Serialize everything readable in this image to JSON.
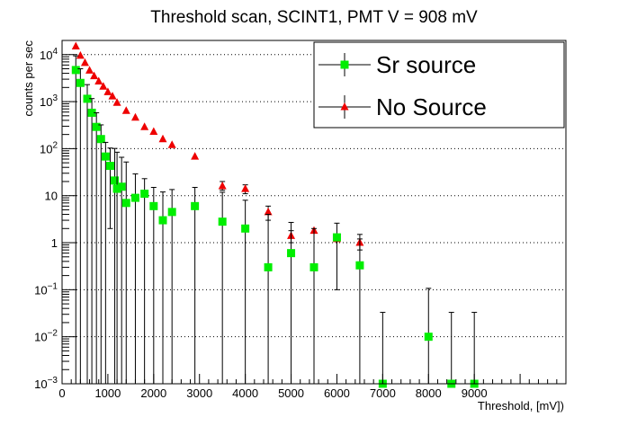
{
  "chart_data": {
    "type": "scatter",
    "title": "Threshold scan, SCINT1, PMT V = 908 mV",
    "xlabel": "Threshold, [mV])",
    "ylabel": "counts per sec",
    "xlim": [
      0,
      11000
    ],
    "ylim": [
      0.001,
      20000
    ],
    "yscale": "log",
    "grid": {
      "x": false,
      "y": true
    },
    "legend_position": "top-right",
    "x_tick_labels": [
      {
        "value": 0,
        "text": "0"
      },
      {
        "value": 1000,
        "text": "1000"
      },
      {
        "value": 2000,
        "text": "2000"
      },
      {
        "value": 3000,
        "text": "3000"
      },
      {
        "value": 4000,
        "text": "4000"
      },
      {
        "value": 5000,
        "text": "5000"
      },
      {
        "value": 6000,
        "text": "6000"
      },
      {
        "value": 7000,
        "text": "7000"
      },
      {
        "value": 8000,
        "text": "8000"
      },
      {
        "value": 9000,
        "text": "9000"
      }
    ],
    "y_tick_labels": [
      {
        "value": 0.001,
        "base": "10",
        "exp": "−3"
      },
      {
        "value": 0.01,
        "base": "10",
        "exp": "−2"
      },
      {
        "value": 0.1,
        "base": "10",
        "exp": "−1"
      },
      {
        "value": 1,
        "base": "1",
        "exp": ""
      },
      {
        "value": 10,
        "base": "10",
        "exp": ""
      },
      {
        "value": 100,
        "base": "10",
        "exp": "2"
      },
      {
        "value": 1000,
        "base": "10",
        "exp": "3"
      },
      {
        "value": 10000,
        "base": "10",
        "exp": "4"
      }
    ],
    "series": [
      {
        "name": "Sr source",
        "marker": "square",
        "color": "#00ee00",
        "points": [
          {
            "x": 300,
            "y": 4700,
            "yerr_low": 4700,
            "yerr_high": 4700
          },
          {
            "x": 400,
            "y": 2500,
            "yerr_low": 2500,
            "yerr_high": 2500
          },
          {
            "x": 550,
            "y": 1150,
            "yerr_low": 1150,
            "yerr_high": 1150
          },
          {
            "x": 650,
            "y": 580,
            "yerr_low": 580,
            "yerr_high": 580
          },
          {
            "x": 750,
            "y": 290,
            "yerr_low": 290,
            "yerr_high": 290
          },
          {
            "x": 850,
            "y": 160,
            "yerr_low": 160,
            "yerr_high": 160
          },
          {
            "x": 950,
            "y": 68,
            "yerr_low": 68,
            "yerr_high": 68
          },
          {
            "x": 1050,
            "y": 43,
            "yerr_low": 41,
            "yerr_high": 60
          },
          {
            "x": 1150,
            "y": 21,
            "yerr_low": 21,
            "yerr_high": 80
          },
          {
            "x": 1200,
            "y": 14,
            "yerr_low": 14,
            "yerr_high": 70
          },
          {
            "x": 1300,
            "y": 15.5,
            "yerr_low": 15.5,
            "yerr_high": 50
          },
          {
            "x": 1400,
            "y": 7,
            "yerr_low": 7,
            "yerr_high": 45
          },
          {
            "x": 1600,
            "y": 9,
            "yerr_low": 9,
            "yerr_high": 20
          },
          {
            "x": 1800,
            "y": 11,
            "yerr_low": 11,
            "yerr_high": 12
          },
          {
            "x": 2000,
            "y": 6,
            "yerr_low": 6,
            "yerr_high": 9
          },
          {
            "x": 2200,
            "y": 3,
            "yerr_low": 3,
            "yerr_high": 9
          },
          {
            "x": 2400,
            "y": 4.5,
            "yerr_low": 4.5,
            "yerr_high": 9
          },
          {
            "x": 2900,
            "y": 6,
            "yerr_low": 6,
            "yerr_high": 9
          },
          {
            "x": 3500,
            "y": 2.8,
            "yerr_low": 2.8,
            "yerr_high": 9
          },
          {
            "x": 4000,
            "y": 2,
            "yerr_low": 2,
            "yerr_high": 6
          },
          {
            "x": 4500,
            "y": 0.3,
            "yerr_low": 0.3,
            "yerr_high": 3.7
          },
          {
            "x": 5000,
            "y": 0.6,
            "yerr_low": 0.6,
            "yerr_high": 2.1
          },
          {
            "x": 5500,
            "y": 0.3,
            "yerr_low": 0.3,
            "yerr_high": 1.7
          },
          {
            "x": 6000,
            "y": 1.3,
            "yerr_low": 1.2,
            "yerr_high": 1.3
          },
          {
            "x": 6500,
            "y": 0.33,
            "yerr_low": 0.33,
            "yerr_high": 0.87
          },
          {
            "x": 7000,
            "y": 0.001,
            "yerr_low": 0,
            "yerr_high": 0.032
          },
          {
            "x": 8000,
            "y": 0.01,
            "yerr_low": 0.01,
            "yerr_high": 0.097
          },
          {
            "x": 8500,
            "y": 0.001,
            "yerr_low": 0,
            "yerr_high": 0.032
          },
          {
            "x": 9000,
            "y": 0.001,
            "yerr_low": 0,
            "yerr_high": 0.032
          }
        ]
      },
      {
        "name": "No Source",
        "marker": "triangle",
        "color": "#ee0000",
        "points": [
          {
            "x": 300,
            "y": 15000,
            "yerr_low": 0,
            "yerr_high": 0
          },
          {
            "x": 400,
            "y": 9500,
            "yerr_low": 0,
            "yerr_high": 0
          },
          {
            "x": 500,
            "y": 6700,
            "yerr_low": 0,
            "yerr_high": 0
          },
          {
            "x": 600,
            "y": 4600,
            "yerr_low": 0,
            "yerr_high": 0
          },
          {
            "x": 700,
            "y": 3500,
            "yerr_low": 0,
            "yerr_high": 0
          },
          {
            "x": 800,
            "y": 2700,
            "yerr_low": 0,
            "yerr_high": 0
          },
          {
            "x": 900,
            "y": 2100,
            "yerr_low": 0,
            "yerr_high": 0
          },
          {
            "x": 1000,
            "y": 1600,
            "yerr_low": 0,
            "yerr_high": 0
          },
          {
            "x": 1100,
            "y": 1300,
            "yerr_low": 0,
            "yerr_high": 0
          },
          {
            "x": 1200,
            "y": 950,
            "yerr_low": 0,
            "yerr_high": 0
          },
          {
            "x": 1400,
            "y": 640,
            "yerr_low": 0,
            "yerr_high": 0
          },
          {
            "x": 1600,
            "y": 460,
            "yerr_low": 0,
            "yerr_high": 0
          },
          {
            "x": 1800,
            "y": 290,
            "yerr_low": 0,
            "yerr_high": 0
          },
          {
            "x": 2000,
            "y": 230,
            "yerr_low": 0,
            "yerr_high": 0
          },
          {
            "x": 2200,
            "y": 160,
            "yerr_low": 0,
            "yerr_high": 0
          },
          {
            "x": 2400,
            "y": 120,
            "yerr_low": 0,
            "yerr_high": 0
          },
          {
            "x": 2900,
            "y": 68,
            "yerr_low": 0,
            "yerr_high": 0
          },
          {
            "x": 3500,
            "y": 16,
            "yerr_low": 3,
            "yerr_high": 4
          },
          {
            "x": 4000,
            "y": 14,
            "yerr_low": 3,
            "yerr_high": 3
          },
          {
            "x": 4500,
            "y": 4.5,
            "yerr_low": 1.5,
            "yerr_high": 1.5
          },
          {
            "x": 5000,
            "y": 1.4,
            "yerr_low": 0.4,
            "yerr_high": 0.4
          },
          {
            "x": 5500,
            "y": 1.8,
            "yerr_low": 0,
            "yerr_high": 0
          },
          {
            "x": 6000,
            "y": 1.2,
            "yerr_low": 0,
            "yerr_high": 0
          },
          {
            "x": 6500,
            "y": 1.0,
            "yerr_low": 0.3,
            "yerr_high": 0.5
          }
        ]
      }
    ]
  }
}
